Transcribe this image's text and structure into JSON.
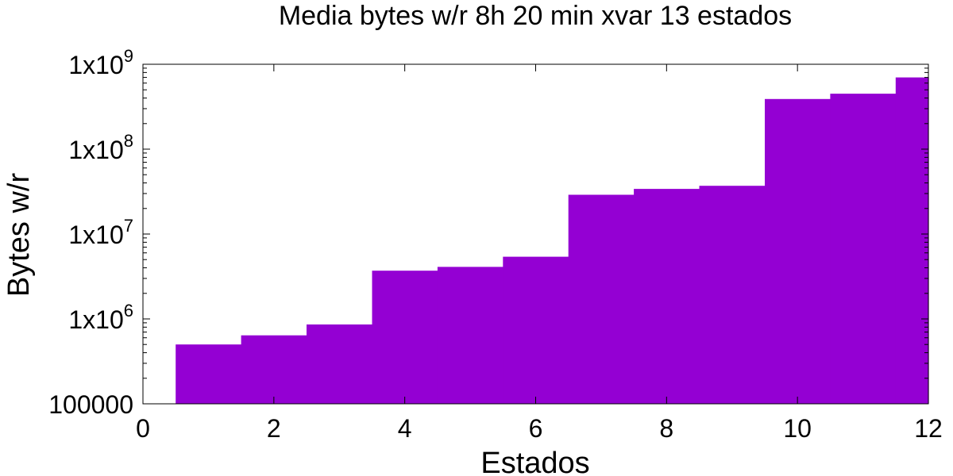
{
  "chart_data": {
    "type": "bar",
    "title": "Media bytes w/r 8h  20 min xvar 13 estados",
    "xlabel": "Estados",
    "ylabel": "Bytes w/r",
    "log_y": true,
    "xlim": [
      0,
      12
    ],
    "ylim": [
      100000,
      1000000000
    ],
    "bar_color": "#9400d3",
    "x": [
      1,
      2,
      3,
      4,
      5,
      6,
      7,
      8,
      9,
      10,
      11,
      12
    ],
    "values": [
      500000,
      640000,
      860000,
      3700000,
      4100000,
      5400000,
      29000000,
      34000000,
      37000000,
      390000000,
      450000000,
      700000000
    ],
    "x_ticks": [
      0,
      2,
      4,
      6,
      8,
      10,
      12
    ],
    "y_ticks": [
      {
        "value": 100000,
        "label": "100000"
      },
      {
        "value": 1000000,
        "base": "1x10",
        "exp": "6"
      },
      {
        "value": 10000000,
        "base": "1x10",
        "exp": "7"
      },
      {
        "value": 100000000,
        "base": "1x10",
        "exp": "8"
      },
      {
        "value": 1000000000,
        "base": "1x10",
        "exp": "9"
      }
    ]
  }
}
